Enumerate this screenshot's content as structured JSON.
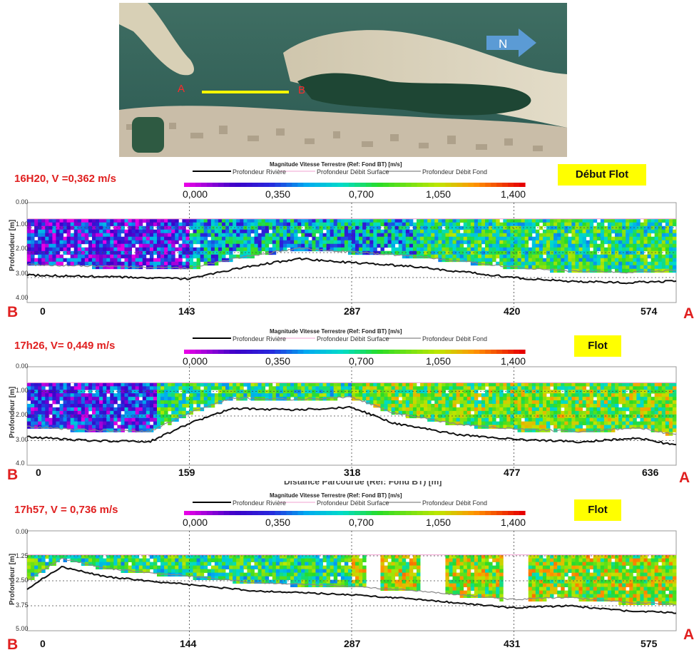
{
  "map": {
    "label_a": "A",
    "label_b": "B",
    "north_label": "N",
    "colors": {
      "sea": "#2c5a52",
      "sand": "#d9d2bd",
      "lagoon": "#1a3d2d",
      "transect": "#f5f500",
      "arrow": "#5b9bd5"
    }
  },
  "legend": {
    "title": "Magnitude Vitesse Terrestre (Ref: Fond BT) [m/s]",
    "items": [
      "Profondeur Rivière",
      "Profondeur Débit Surface",
      "Profondeur Débit Fond"
    ],
    "colorbar_ticks": [
      "0,000",
      "0,350",
      "0,700",
      "1,050",
      "1,400"
    ]
  },
  "chart_data": [
    {
      "type": "heatmap",
      "time_label": "16H20, V =0,362  m/s",
      "badge": "Début Flot",
      "left_label": "B",
      "right_label": "A",
      "ylabel": "Profondeur [m]",
      "yticks": [
        "0.00",
        "1.00",
        "2.00",
        "3.00",
        "4.00"
      ],
      "xticks": [
        "0",
        "143",
        "287",
        "420",
        "574"
      ],
      "xlim": [
        0,
        574
      ],
      "ylim": [
        4,
        0
      ],
      "mean_velocity": 0.362,
      "bottom_profile": {
        "x": [
          0,
          50,
          100,
          143,
          190,
          240,
          287,
          340,
          380,
          430,
          480,
          530,
          574
        ],
        "y": [
          2.9,
          2.95,
          3.0,
          3.05,
          2.6,
          2.25,
          2.4,
          2.55,
          2.75,
          3.0,
          3.15,
          3.2,
          3.15
        ]
      }
    },
    {
      "type": "heatmap",
      "time_label": "17h26, V= 0,449 m/s",
      "badge": "Flot",
      "left_label": "B",
      "right_label": "A",
      "ylabel": "Profondeur [m]",
      "xlabel_partial": "Distance Parcourue (Ref: Fond BT) [m]",
      "yticks": [
        "0.00",
        "1.00",
        "2.00",
        "3.00",
        "4.0"
      ],
      "xticks": [
        "0",
        "159",
        "318",
        "477",
        "636"
      ],
      "xlim": [
        0,
        636
      ],
      "ylim": [
        4,
        0
      ],
      "mean_velocity": 0.449,
      "bottom_profile": {
        "x": [
          0,
          60,
          120,
          159,
          200,
          260,
          318,
          360,
          420,
          477,
          540,
          600,
          636
        ],
        "y": [
          2.85,
          3.0,
          3.05,
          2.3,
          1.7,
          1.75,
          1.65,
          2.3,
          2.75,
          2.95,
          3.05,
          2.9,
          3.2
        ]
      }
    },
    {
      "type": "heatmap",
      "time_label": "17h57, V = 0,736 m/s",
      "badge": "Flot",
      "left_label": "B",
      "right_label": "A",
      "ylabel": "Profondeur [m]",
      "yticks": [
        "0.00",
        "1.25",
        "2.50",
        "3.75",
        "5.00"
      ],
      "xticks": [
        "0",
        "144",
        "287",
        "431",
        "575"
      ],
      "xlim": [
        0,
        575
      ],
      "ylim": [
        5,
        0
      ],
      "mean_velocity": 0.736,
      "bottom_profile": {
        "x": [
          0,
          30,
          70,
          144,
          200,
          287,
          340,
          400,
          431,
          480,
          530,
          575
        ],
        "y": [
          2.9,
          1.8,
          2.3,
          2.7,
          3.0,
          3.2,
          3.4,
          3.7,
          3.85,
          3.75,
          4.0,
          4.1
        ]
      }
    }
  ]
}
